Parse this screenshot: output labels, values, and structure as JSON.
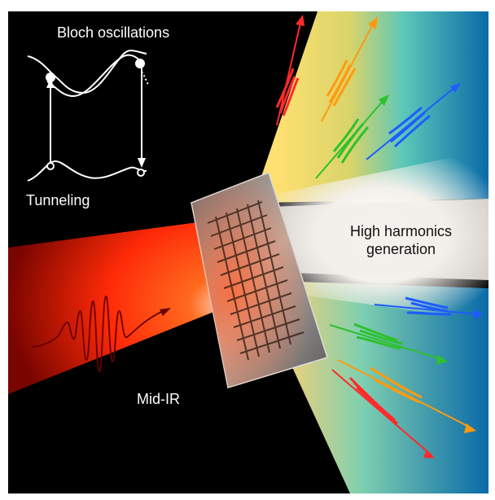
{
  "labels": {
    "bloch": "Bloch oscillations",
    "tunneling": "Tunneling",
    "hhg_line1": "High harmonics",
    "hhg_line2": "generation",
    "midir": "Mid-IR"
  },
  "colors": {
    "background": "#000000",
    "midir_beam": "#ff3b10",
    "harmonic_red": "#ff2a2a",
    "harmonic_orange": "#ff9a10",
    "harmonic_green": "#2ec02e",
    "harmonic_blue": "#1e5cff",
    "white": "#ffffff"
  },
  "icons": [
    "band-diagram-icon",
    "crystal-chip-icon",
    "pulse-arrow-icon"
  ]
}
